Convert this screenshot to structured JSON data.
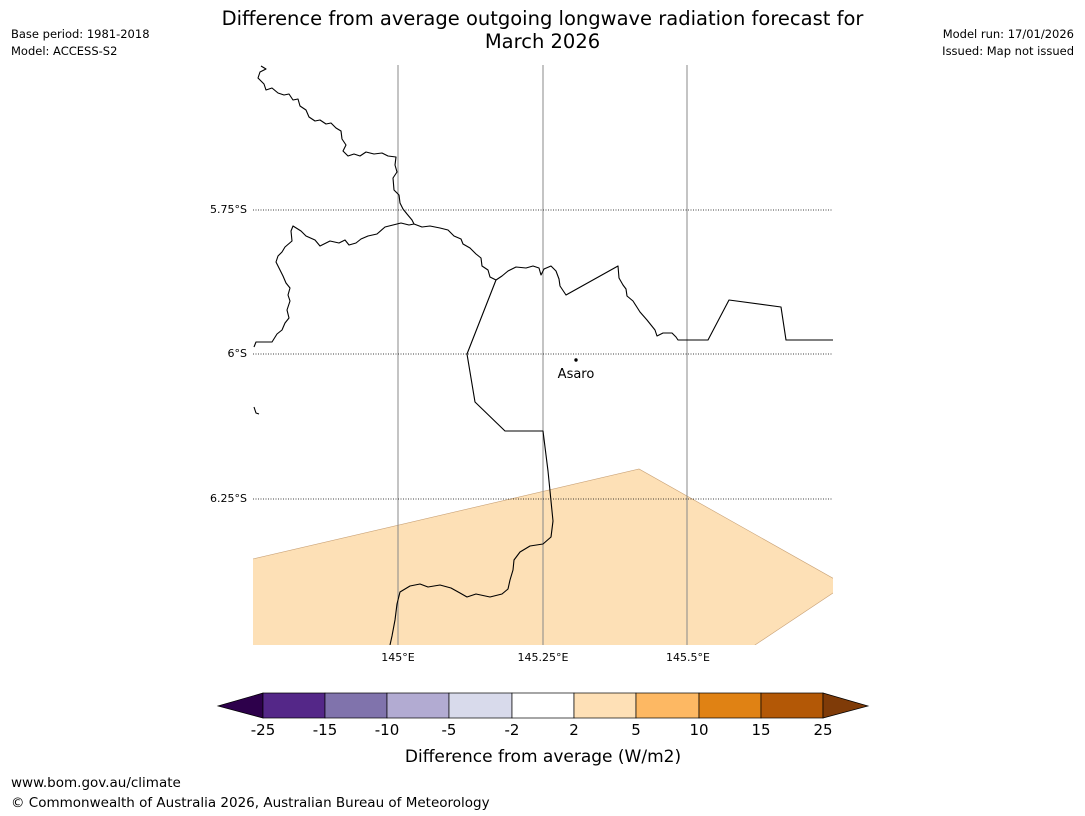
{
  "header": {
    "title_line1": "Difference from average outgoing longwave radiation forecast for",
    "title_line2": "March 2026",
    "base_period": "Base period: 1981-2018",
    "model": "Model: ACCESS-S2",
    "model_run": "Model run: 17/01/2026",
    "issued": "Issued: Map not issued"
  },
  "map": {
    "lat_labels": [
      "5.75°S",
      "6°S",
      "6.25°S"
    ],
    "lon_labels": [
      "145°E",
      "145.25°E",
      "145.5°E"
    ],
    "place_label": "Asaro",
    "anomaly_fill_color": "#fde0b6",
    "anomaly_category": "2 to 5"
  },
  "colorbar": {
    "label": "Difference from average (W/m2)",
    "ticks": [
      "-25",
      "-15",
      "-10",
      "-5",
      "-2",
      "2",
      "5",
      "10",
      "15",
      "25"
    ],
    "colors": [
      "#2d004b",
      "#542788",
      "#8073ac",
      "#b2abd2",
      "#d8daeb",
      "#ffffff",
      "#fee0b6",
      "#fdb863",
      "#e08214",
      "#b35806",
      "#7f3b08"
    ]
  },
  "footer": {
    "url": "www.bom.gov.au/climate",
    "copyright": "© Commonwealth of Australia 2026, Australian Bureau of Meteorology"
  }
}
